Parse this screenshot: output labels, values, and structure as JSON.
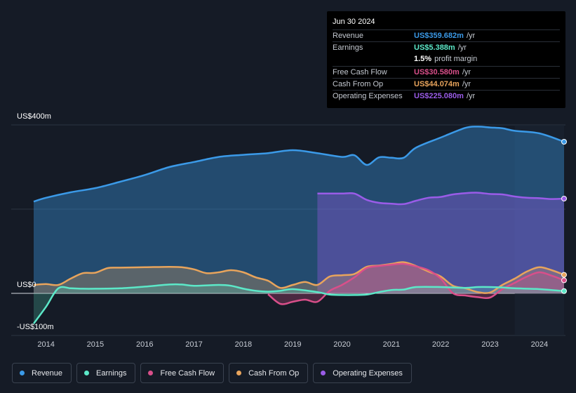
{
  "chart_data": {
    "type": "area",
    "title": "",
    "xlabel": "",
    "ylabel": "",
    "ylim": [
      -100,
      400
    ],
    "xlim": [
      2013.75,
      2024.5
    ],
    "forecast_start": 2023.5,
    "y_labels": [
      "US$400m",
      "US$0",
      "-US$100m"
    ],
    "x_ticks": [
      "2014",
      "2015",
      "2016",
      "2017",
      "2018",
      "2019",
      "2020",
      "2021",
      "2022",
      "2023",
      "2024"
    ],
    "series": [
      {
        "name": "Revenue",
        "color": "#3b9ae8",
        "x": [
          2013.75,
          2014.0,
          2014.5,
          2015.0,
          2015.5,
          2016.0,
          2016.5,
          2017.0,
          2017.5,
          2018.0,
          2018.5,
          2019.0,
          2019.5,
          2020.0,
          2020.25,
          2020.5,
          2020.75,
          2021.0,
          2021.25,
          2021.5,
          2022.0,
          2022.5,
          2022.75,
          2023.0,
          2023.25,
          2023.5,
          2024.0,
          2024.5
        ],
        "values": [
          218,
          227,
          240,
          250,
          265,
          281,
          300,
          312,
          324,
          329,
          333,
          340,
          333,
          324,
          328,
          305,
          323,
          322,
          322,
          346,
          370,
          393,
          396,
          394,
          392,
          386,
          380,
          360
        ]
      },
      {
        "name": "Operating Expenses",
        "color": "#9a5ce8",
        "x": [
          2019.5,
          2019.75,
          2020.0,
          2020.25,
          2020.5,
          2020.75,
          2021.0,
          2021.25,
          2021.5,
          2021.75,
          2022.0,
          2022.25,
          2022.5,
          2022.75,
          2023.0,
          2023.25,
          2023.5,
          2023.75,
          2024.0,
          2024.25,
          2024.5
        ],
        "values": [
          237,
          237,
          237,
          237,
          222,
          215,
          213,
          212,
          220,
          227,
          229,
          235,
          238,
          239,
          236,
          235,
          230,
          227,
          226,
          224,
          225
        ]
      },
      {
        "name": "Cash From Op",
        "color": "#e8a45c",
        "x": [
          2013.75,
          2014.0,
          2014.25,
          2014.5,
          2014.75,
          2015.0,
          2015.25,
          2015.5,
          2016.0,
          2016.5,
          2016.75,
          2017.0,
          2017.25,
          2017.5,
          2017.75,
          2018.0,
          2018.25,
          2018.5,
          2018.75,
          2019.0,
          2019.25,
          2019.5,
          2019.75,
          2020.0,
          2020.25,
          2020.5,
          2020.75,
          2021.0,
          2021.25,
          2021.5,
          2021.75,
          2022.0,
          2022.25,
          2022.5,
          2022.75,
          2023.0,
          2023.25,
          2023.5,
          2023.75,
          2024.0,
          2024.25,
          2024.5
        ],
        "values": [
          20,
          22,
          20,
          35,
          48,
          49,
          60,
          61,
          62,
          63,
          62,
          57,
          48,
          50,
          55,
          50,
          38,
          30,
          13,
          20,
          27,
          20,
          40,
          43,
          46,
          63,
          66,
          70,
          74,
          65,
          52,
          40,
          18,
          12,
          3,
          2,
          20,
          35,
          52,
          62,
          55,
          44
        ]
      },
      {
        "name": "Free Cash Flow",
        "color": "#d94f8a",
        "x": [
          2018.5,
          2018.75,
          2019.0,
          2019.25,
          2019.5,
          2019.75,
          2020.0,
          2020.25,
          2020.5,
          2020.75,
          2021.0,
          2021.25,
          2021.5,
          2021.75,
          2022.0,
          2022.25,
          2022.5,
          2022.75,
          2023.0,
          2023.25,
          2023.5,
          2023.75,
          2024.0,
          2024.25,
          2024.5
        ],
        "values": [
          -2,
          -25,
          -20,
          -15,
          -20,
          6,
          20,
          38,
          60,
          65,
          68,
          70,
          64,
          55,
          35,
          0,
          -5,
          -9,
          -10,
          10,
          25,
          40,
          50,
          42,
          31
        ]
      },
      {
        "name": "Earnings",
        "color": "#5ce8c8",
        "x": [
          2013.75,
          2014.0,
          2014.25,
          2014.5,
          2014.75,
          2015.0,
          2015.5,
          2016.0,
          2016.5,
          2016.75,
          2017.0,
          2017.5,
          2017.75,
          2018.0,
          2018.25,
          2018.5,
          2018.75,
          2019.0,
          2019.5,
          2019.75,
          2020.0,
          2020.25,
          2020.5,
          2020.75,
          2021.0,
          2021.25,
          2021.5,
          2022.0,
          2022.5,
          2022.75,
          2023.0,
          2023.25,
          2023.5,
          2024.0,
          2024.5
        ],
        "values": [
          -72,
          -32,
          12,
          12,
          11,
          11,
          12,
          16,
          21,
          21,
          18,
          20,
          18,
          11,
          6,
          4,
          6,
          10,
          3,
          -3,
          -4,
          -4,
          -3,
          3,
          8,
          9,
          15,
          15,
          13,
          15,
          15,
          14,
          12,
          10,
          5.4
        ]
      }
    ],
    "legend": [
      "Revenue",
      "Earnings",
      "Free Cash Flow",
      "Cash From Op",
      "Operating Expenses"
    ],
    "legend_position": "bottom-left"
  },
  "tooltip": {
    "date": "Jun 30 2024",
    "rows": [
      {
        "label": "Revenue",
        "value": "US$359.682m",
        "suffix": "/yr",
        "color": "#3b9ae8"
      },
      {
        "label": "Earnings",
        "value": "US$5.388m",
        "suffix": "/yr",
        "color": "#5ce8c8"
      },
      {
        "label": "",
        "value": "1.5%",
        "suffix": "profit margin",
        "color": "#ffffff"
      },
      {
        "label": "Free Cash Flow",
        "value": "US$30.580m",
        "suffix": "/yr",
        "color": "#d94f8a"
      },
      {
        "label": "Cash From Op",
        "value": "US$44.074m",
        "suffix": "/yr",
        "color": "#e8a45c"
      },
      {
        "label": "Operating Expenses",
        "value": "US$225.080m",
        "suffix": "/yr",
        "color": "#9a5ce8"
      }
    ]
  },
  "legend_items": [
    {
      "label": "Revenue",
      "color": "#3b9ae8"
    },
    {
      "label": "Earnings",
      "color": "#5ce8c8"
    },
    {
      "label": "Free Cash Flow",
      "color": "#d94f8a"
    },
    {
      "label": "Cash From Op",
      "color": "#e8a45c"
    },
    {
      "label": "Operating Expenses",
      "color": "#9a5ce8"
    }
  ]
}
